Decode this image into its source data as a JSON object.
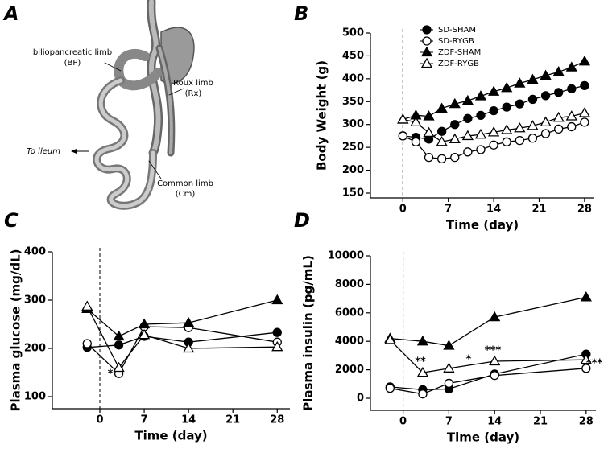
{
  "illustration": {
    "panel_label": "A",
    "labels": [
      "biliopancreatic limb",
      "(BP)",
      "Roux limb",
      "(Rx)",
      "Common limb",
      "(Cm)",
      "To ileum"
    ]
  },
  "chart_data": [
    {
      "type": "line",
      "panel_label": "B",
      "x_label": "Time (day)",
      "y_label": "Body Weight (g)",
      "x": [
        0,
        2,
        4,
        6,
        8,
        10,
        12,
        14,
        16,
        18,
        20,
        22,
        24,
        26,
        28
      ],
      "xlim": [
        -5,
        29.5
      ],
      "xticks": [
        0,
        7,
        14,
        21,
        28
      ],
      "ylim": [
        150,
        500
      ],
      "yticks": [
        150,
        200,
        250,
        300,
        350,
        400,
        450,
        500
      ],
      "vline": 0,
      "legend": "top",
      "series": [
        {
          "name": "SD-SHAM",
          "color": "#000000",
          "marker": "circle",
          "filled": true,
          "values": [
            275,
            272,
            268,
            285,
            300,
            313,
            320,
            330,
            338,
            345,
            355,
            363,
            370,
            378,
            385
          ]
        },
        {
          "name": "SD-RYGB",
          "color": "#000000",
          "marker": "circle",
          "filled": false,
          "values": [
            275,
            262,
            228,
            225,
            228,
            240,
            245,
            255,
            262,
            265,
            270,
            280,
            290,
            295,
            305
          ]
        },
        {
          "name": "ZDF-SHAM",
          "color": "#000000",
          "marker": "triangle",
          "filled": true,
          "values": [
            311,
            320,
            318,
            335,
            345,
            352,
            362,
            372,
            380,
            390,
            398,
            407,
            415,
            425,
            438
          ]
        },
        {
          "name": "ZDF-RYGB",
          "color": "#000000",
          "marker": "triangle",
          "filled": false,
          "values": [
            311,
            305,
            282,
            262,
            268,
            275,
            278,
            283,
            288,
            292,
            297,
            305,
            315,
            318,
            325
          ]
        }
      ]
    },
    {
      "type": "line",
      "panel_label": "C",
      "x_label": "Time (day)",
      "y_label": "Plasma glucose (mg/dL)",
      "x": [
        -2,
        3,
        7,
        14,
        28
      ],
      "xlim": [
        -7.5,
        30
      ],
      "xticks": [
        0,
        7,
        14,
        21,
        28
      ],
      "ylim": [
        100,
        400
      ],
      "yticks": [
        100,
        200,
        300,
        400
      ],
      "vline": 0,
      "annotations": [
        "*"
      ],
      "series": [
        {
          "name": "SD-SHAM",
          "color": "#000000",
          "marker": "circle",
          "filled": true,
          "values": [
            202,
            207,
            225,
            213,
            233
          ]
        },
        {
          "name": "SD-RYGB",
          "color": "#000000",
          "marker": "circle",
          "filled": false,
          "values": [
            210,
            148,
            245,
            243,
            213
          ]
        },
        {
          "name": "ZDF-SHAM",
          "color": "#000000",
          "marker": "triangle",
          "filled": true,
          "values": [
            282,
            225,
            250,
            253,
            300
          ]
        },
        {
          "name": "ZDF-RYGB",
          "color": "#000000",
          "marker": "triangle",
          "filled": false,
          "values": [
            287,
            160,
            228,
            200,
            203
          ]
        }
      ]
    },
    {
      "type": "line",
      "panel_label": "D",
      "x_label": "Time (day)",
      "y_label": "Plasma insulin (pg/mL)",
      "x": [
        -2,
        3,
        7,
        14,
        28
      ],
      "xlim": [
        -5,
        29.5
      ],
      "xticks": [
        0,
        7,
        14,
        21,
        28
      ],
      "ylim": [
        0,
        10000
      ],
      "yticks": [
        0,
        2000,
        4000,
        6000,
        8000,
        10000
      ],
      "vline": 0,
      "annotations": [
        "**",
        "*",
        "***",
        "***"
      ],
      "series": [
        {
          "name": "SD-SHAM",
          "color": "#000000",
          "marker": "circle",
          "filled": true,
          "values": [
            800,
            600,
            650,
            1700,
            3100
          ]
        },
        {
          "name": "SD-RYGB",
          "color": "#000000",
          "marker": "circle",
          "filled": false,
          "values": [
            700,
            300,
            1050,
            1600,
            2100
          ]
        },
        {
          "name": "ZDF-SHAM",
          "color": "#000000",
          "marker": "triangle",
          "filled": true,
          "values": [
            4200,
            4000,
            3700,
            5700,
            7100
          ]
        },
        {
          "name": "ZDF-RYGB",
          "color": "#000000",
          "marker": "triangle",
          "filled": false,
          "values": [
            4100,
            1800,
            2100,
            2600,
            2700
          ]
        }
      ]
    }
  ]
}
